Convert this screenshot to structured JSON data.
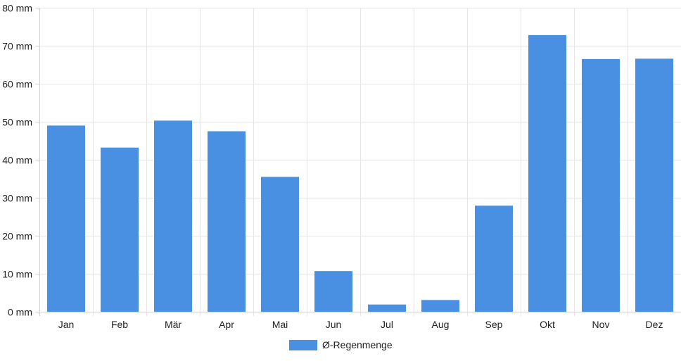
{
  "chart_data": {
    "type": "bar",
    "categories": [
      "Jan",
      "Feb",
      "Mär",
      "Apr",
      "Mai",
      "Jun",
      "Jul",
      "Aug",
      "Sep",
      "Okt",
      "Nov",
      "Dez"
    ],
    "series": [
      {
        "name": "Ø-Regenmenge",
        "color": "#4a90e2",
        "values": [
          49.0,
          43.2,
          50.3,
          47.5,
          35.5,
          10.7,
          1.9,
          3.1,
          27.9,
          72.8,
          66.5,
          66.6
        ]
      }
    ],
    "ylim": [
      0,
      80
    ],
    "y_ticks": [
      0,
      10,
      20,
      30,
      40,
      50,
      60,
      70,
      80
    ],
    "y_unit": "mm",
    "grid": true,
    "legend_position": "bottom",
    "title": "",
    "xlabel": "",
    "ylabel": ""
  }
}
